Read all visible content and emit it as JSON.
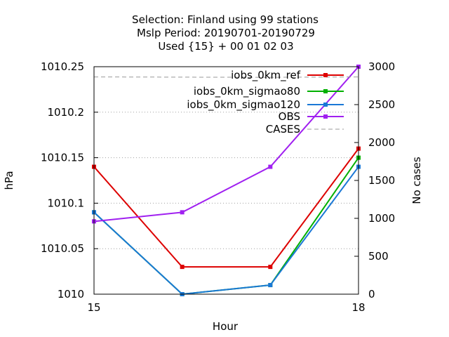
{
  "chart_data": {
    "type": "line",
    "title_lines": [
      "Selection: Finland using    99 stations",
      "Mslp   Period: 20190701-20190729",
      "Used {15} + 00 01 02 03"
    ],
    "xlabel": "Hour",
    "ylabel": "hPa",
    "y2label": "No cases",
    "x": [
      15,
      16,
      17,
      18
    ],
    "x_tick_labels": [
      "15",
      "18"
    ],
    "x_tick_values": [
      15,
      18
    ],
    "xlim": [
      15,
      18
    ],
    "ylim": [
      1010,
      1010.25
    ],
    "y_tick_labels": [
      "1010",
      "1010.05",
      "1010.1",
      "1010.15",
      "1010.2",
      "1010.25"
    ],
    "y_tick_values": [
      1010,
      1010.05,
      1010.1,
      1010.15,
      1010.2,
      1010.25
    ],
    "y2lim": [
      0,
      3000
    ],
    "y2_tick_labels": [
      "0",
      "500",
      "1000",
      "1500",
      "2000",
      "2500",
      "3000"
    ],
    "y2_tick_values": [
      0,
      500,
      1000,
      1500,
      2000,
      2500,
      3000
    ],
    "grid": "horizontal dotted",
    "legend_position": "top-right",
    "series": [
      {
        "name": "iobs_0km_ref",
        "axis": "y",
        "color": "#dd0000",
        "marker": "square",
        "values": [
          1010.14,
          1010.03,
          1010.03,
          1010.16
        ]
      },
      {
        "name": "iobs_0km_sigmao80",
        "axis": "y",
        "color": "#00b000",
        "marker": "square",
        "values": [
          1010.09,
          1010.0,
          1010.01,
          1010.15
        ]
      },
      {
        "name": "iobs_0km_sigmao120",
        "axis": "y",
        "color": "#1a78d6",
        "marker": "square",
        "values": [
          1010.09,
          1010.0,
          1010.01,
          1010.14
        ]
      },
      {
        "name": "OBS",
        "axis": "y",
        "color": "#a020f0",
        "marker": "square",
        "values": [
          1010.08,
          1010.09,
          1010.14,
          1010.25
        ]
      },
      {
        "name": "CASES",
        "axis": "y2",
        "color": "#999999",
        "dashed": true,
        "values": [
          2865,
          2862,
          2860,
          2865
        ]
      }
    ]
  }
}
